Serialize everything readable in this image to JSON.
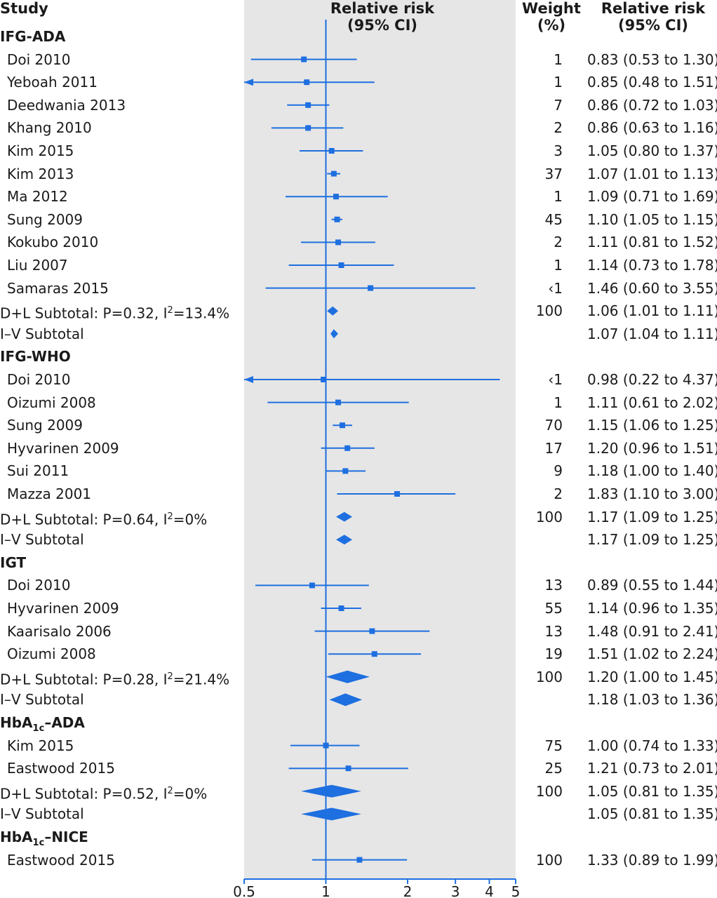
{
  "headers": {
    "study": "Study",
    "rr_plot_1": "Relative risk",
    "rr_plot_2": "(95% CI)",
    "weight_1": "Weight",
    "weight_2": "(%)",
    "rr_col_1": "Relative risk",
    "rr_col_2": "(95% CI)"
  },
  "colors": {
    "accent": "#1e6fe0",
    "panel": "#e6e6e6",
    "text": "#1a1a1a"
  },
  "chart_data": {
    "type": "forest",
    "x_scale": "log",
    "xlim": [
      0.5,
      5
    ],
    "ticks": [
      0.5,
      1,
      2,
      3,
      4,
      5
    ],
    "tick_labels": [
      "0.5",
      "1",
      "2",
      "3",
      "4",
      "5"
    ],
    "reference_line": 1,
    "rows": [
      {
        "kind": "group",
        "label": "IFG-ADA"
      },
      {
        "kind": "study",
        "label": "Doi 2010",
        "est": 0.83,
        "lo": 0.53,
        "hi": 1.3,
        "weight": "1",
        "ci_text": "0.83 (0.53 to 1.30)"
      },
      {
        "kind": "study",
        "label": "Yeboah 2011",
        "est": 0.85,
        "lo": 0.48,
        "hi": 1.51,
        "weight": "1",
        "ci_text": "0.85 (0.48 to 1.51)"
      },
      {
        "kind": "study",
        "label": "Deedwania 2013",
        "est": 0.86,
        "lo": 0.72,
        "hi": 1.03,
        "weight": "7",
        "ci_text": "0.86 (0.72 to 1.03)"
      },
      {
        "kind": "study",
        "label": "Khang 2010",
        "est": 0.86,
        "lo": 0.63,
        "hi": 1.16,
        "weight": "2",
        "ci_text": "0.86 (0.63 to 1.16)"
      },
      {
        "kind": "study",
        "label": "Kim 2015",
        "est": 1.05,
        "lo": 0.8,
        "hi": 1.37,
        "weight": "3",
        "ci_text": "1.05 (0.80 to 1.37)"
      },
      {
        "kind": "study",
        "label": "Kim 2013",
        "est": 1.07,
        "lo": 1.01,
        "hi": 1.13,
        "weight": "37",
        "ci_text": "1.07 (1.01 to 1.13)"
      },
      {
        "kind": "study",
        "label": "Ma 2012",
        "est": 1.09,
        "lo": 0.71,
        "hi": 1.69,
        "weight": "1",
        "ci_text": "1.09 (0.71 to 1.69)"
      },
      {
        "kind": "study",
        "label": "Sung 2009",
        "est": 1.1,
        "lo": 1.05,
        "hi": 1.15,
        "weight": "45",
        "ci_text": "1.10 (1.05 to 1.15)"
      },
      {
        "kind": "study",
        "label": "Kokubo 2010",
        "est": 1.11,
        "lo": 0.81,
        "hi": 1.52,
        "weight": "2",
        "ci_text": "1.11 (0.81 to 1.52)"
      },
      {
        "kind": "study",
        "label": "Liu 2007",
        "est": 1.14,
        "lo": 0.73,
        "hi": 1.78,
        "weight": "1",
        "ci_text": "1.14 (0.73 to 1.78)"
      },
      {
        "kind": "study",
        "label": "Samaras 2015",
        "est": 1.46,
        "lo": 0.6,
        "hi": 3.55,
        "weight": "‹1",
        "ci_text": "1.46 (0.60 to 3.55)"
      },
      {
        "kind": "subtotal",
        "label_pre": "D+L Subtotal: P=0.32, I",
        "label_sup": "2",
        "label_post": "=13.4%",
        "est": 1.06,
        "lo": 1.01,
        "hi": 1.11,
        "weight": "100",
        "ci_text": "1.06 (1.01 to 1.11)"
      },
      {
        "kind": "subtotal",
        "label_pre": "I–V Subtotal",
        "est": 1.07,
        "lo": 1.04,
        "hi": 1.11,
        "weight": "",
        "ci_text": "1.07 (1.04 to 1.11)"
      },
      {
        "kind": "group",
        "label": "IFG-WHO"
      },
      {
        "kind": "study",
        "label": "Doi 2010",
        "est": 0.98,
        "lo": 0.22,
        "hi": 4.37,
        "weight": "‹1",
        "ci_text": "0.98 (0.22 to 4.37)"
      },
      {
        "kind": "study",
        "label": "Oizumi 2008",
        "est": 1.11,
        "lo": 0.61,
        "hi": 2.02,
        "weight": "1",
        "ci_text": "1.11 (0.61 to 2.02)"
      },
      {
        "kind": "study",
        "label": "Sung 2009",
        "est": 1.15,
        "lo": 1.06,
        "hi": 1.25,
        "weight": "70",
        "ci_text": "1.15 (1.06 to 1.25)"
      },
      {
        "kind": "study",
        "label": "Hyvarinen 2009",
        "est": 1.2,
        "lo": 0.96,
        "hi": 1.51,
        "weight": "17",
        "ci_text": "1.20 (0.96 to 1.51)"
      },
      {
        "kind": "study",
        "label": "Sui 2011",
        "est": 1.18,
        "lo": 1.0,
        "hi": 1.4,
        "weight": "9",
        "ci_text": "1.18 (1.00 to 1.40)"
      },
      {
        "kind": "study",
        "label": "Mazza 2001",
        "est": 1.83,
        "lo": 1.1,
        "hi": 3.0,
        "weight": "2",
        "ci_text": "1.83 (1.10 to 3.00)"
      },
      {
        "kind": "subtotal",
        "label_pre": "D+L Subtotal: P=0.64, I",
        "label_sup": "2",
        "label_post": "=0%",
        "est": 1.17,
        "lo": 1.09,
        "hi": 1.25,
        "weight": "100",
        "ci_text": "1.17 (1.09 to 1.25)"
      },
      {
        "kind": "subtotal",
        "label_pre": "I–V Subtotal",
        "est": 1.17,
        "lo": 1.09,
        "hi": 1.25,
        "weight": "",
        "ci_text": "1.17 (1.09 to 1.25)"
      },
      {
        "kind": "group",
        "label": "IGT"
      },
      {
        "kind": "study",
        "label": "Doi 2010",
        "est": 0.89,
        "lo": 0.55,
        "hi": 1.44,
        "weight": "13",
        "ci_text": "0.89 (0.55 to 1.44)"
      },
      {
        "kind": "study",
        "label": "Hyvarinen 2009",
        "est": 1.14,
        "lo": 0.96,
        "hi": 1.35,
        "weight": "55",
        "ci_text": "1.14 (0.96 to 1.35)"
      },
      {
        "kind": "study",
        "label": "Kaarisalo 2006",
        "est": 1.48,
        "lo": 0.91,
        "hi": 2.41,
        "weight": "13",
        "ci_text": "1.48 (0.91 to 2.41)"
      },
      {
        "kind": "study",
        "label": "Oizumi 2008",
        "est": 1.51,
        "lo": 1.02,
        "hi": 2.24,
        "weight": "19",
        "ci_text": "1.51 (1.02 to 2.24)"
      },
      {
        "kind": "subtotal",
        "label_pre": "D+L Subtotal: P=0.28, I",
        "label_sup": "2",
        "label_post": "=21.4%",
        "est": 1.2,
        "lo": 1.0,
        "hi": 1.45,
        "weight": "100",
        "ci_text": "1.20 (1.00 to 1.45)"
      },
      {
        "kind": "subtotal",
        "label_pre": "I–V Subtotal",
        "est": 1.18,
        "lo": 1.03,
        "hi": 1.36,
        "weight": "",
        "ci_text": "1.18 (1.03 to 1.36)"
      },
      {
        "kind": "group",
        "label_pre": "HbA",
        "label_sub": "1c",
        "label_post": "–ADA"
      },
      {
        "kind": "study",
        "label": "Kim 2015",
        "est": 1.0,
        "lo": 0.74,
        "hi": 1.33,
        "weight": "75",
        "ci_text": "1.00 (0.74 to 1.33)"
      },
      {
        "kind": "study",
        "label": "Eastwood 2015",
        "est": 1.21,
        "lo": 0.73,
        "hi": 2.01,
        "weight": "25",
        "ci_text": "1.21 (0.73 to 2.01)"
      },
      {
        "kind": "subtotal",
        "label_pre": "D+L Subtotal: P=0.52, I",
        "label_sup": "2",
        "label_post": "=0%",
        "est": 1.05,
        "lo": 0.81,
        "hi": 1.35,
        "weight": "100",
        "ci_text": "1.05 (0.81 to 1.35)"
      },
      {
        "kind": "subtotal",
        "label_pre": "I–V Subtotal",
        "est": 1.05,
        "lo": 0.81,
        "hi": 1.35,
        "weight": "",
        "ci_text": "1.05 (0.81 to 1.35)"
      },
      {
        "kind": "group",
        "label_pre": "HbA",
        "label_sub": "1c",
        "label_post": "–NICE"
      },
      {
        "kind": "study",
        "label": "Eastwood 2015",
        "est": 1.33,
        "lo": 0.89,
        "hi": 1.99,
        "weight": "100",
        "ci_text": "1.33 (0.89 to 1.99)"
      }
    ]
  }
}
